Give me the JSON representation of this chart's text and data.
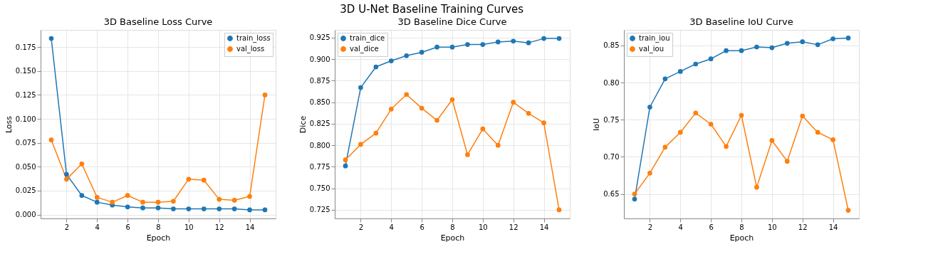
{
  "chart_data": [
    {
      "type": "line",
      "title": "3D Baseline Loss Curve",
      "xlabel": "Epoch",
      "ylabel": "Loss",
      "annotations": [
        "3D U-Net Baseline Training Curves"
      ],
      "x": [
        1,
        2,
        3,
        4,
        5,
        6,
        7,
        8,
        9,
        10,
        11,
        12,
        13,
        14,
        15
      ],
      "series": [
        {
          "name": "train_loss",
          "color": "#1f77b4",
          "values": [
            0.184,
            0.042,
            0.02,
            0.013,
            0.01,
            0.008,
            0.007,
            0.007,
            0.006,
            0.006,
            0.006,
            0.006,
            0.006,
            0.005,
            0.005
          ]
        },
        {
          "name": "val_loss",
          "color": "#ff7f0e",
          "values": [
            0.078,
            0.037,
            0.053,
            0.018,
            0.013,
            0.02,
            0.013,
            0.013,
            0.014,
            0.037,
            0.036,
            0.016,
            0.015,
            0.019,
            0.125
          ]
        }
      ],
      "xlim": [
        0.3,
        15.7
      ],
      "xticks": [
        2,
        4,
        6,
        8,
        10,
        12,
        14
      ],
      "ylim": [
        -0.004,
        0.193
      ],
      "yticks": [
        {
          "value": 0,
          "label": "0.000"
        },
        {
          "value": 0.025,
          "label": "0.025"
        },
        {
          "value": 0.05,
          "label": "0.050"
        },
        {
          "value": 0.075,
          "label": "0.075"
        },
        {
          "value": 0.1,
          "label": "0.100"
        },
        {
          "value": 0.125,
          "label": "0.125"
        },
        {
          "value": 0.15,
          "label": "0.150"
        },
        {
          "value": 0.175,
          "label": "0.175"
        }
      ],
      "grid": true,
      "legend": "top right",
      "marker": "circle",
      "line_style": "solid"
    },
    {
      "type": "line",
      "title": "3D Baseline Dice Curve",
      "xlabel": "Epoch",
      "ylabel": "Dice",
      "x": [
        1,
        2,
        3,
        4,
        5,
        6,
        7,
        8,
        9,
        10,
        11,
        12,
        13,
        14,
        15
      ],
      "series": [
        {
          "name": "train_dice",
          "color": "#1f77b4",
          "values": [
            0.776,
            0.867,
            0.891,
            0.898,
            0.904,
            0.908,
            0.914,
            0.914,
            0.917,
            0.917,
            0.92,
            0.921,
            0.919,
            0.924,
            0.924
          ]
        },
        {
          "name": "val_dice",
          "color": "#ff7f0e",
          "values": [
            0.783,
            0.801,
            0.814,
            0.842,
            0.859,
            0.843,
            0.829,
            0.853,
            0.789,
            0.819,
            0.8,
            0.85,
            0.837,
            0.826,
            0.725
          ]
        }
      ],
      "xlim": [
        0.3,
        15.7
      ],
      "xticks": [
        2,
        4,
        6,
        8,
        10,
        12,
        14
      ],
      "ylim": [
        0.715,
        0.934
      ],
      "yticks": [
        {
          "value": 0.725,
          "label": "0.725"
        },
        {
          "value": 0.75,
          "label": "0.750"
        },
        {
          "value": 0.775,
          "label": "0.775"
        },
        {
          "value": 0.8,
          "label": "0.800"
        },
        {
          "value": 0.825,
          "label": "0.825"
        },
        {
          "value": 0.85,
          "label": "0.850"
        },
        {
          "value": 0.875,
          "label": "0.875"
        },
        {
          "value": 0.9,
          "label": "0.900"
        },
        {
          "value": 0.925,
          "label": "0.925"
        }
      ],
      "grid": true,
      "legend": "top left",
      "marker": "circle",
      "line_style": "solid"
    },
    {
      "type": "line",
      "title": "3D Baseline IoU Curve",
      "xlabel": "Epoch",
      "ylabel": "IoU",
      "x": [
        1,
        2,
        3,
        4,
        5,
        6,
        7,
        8,
        9,
        10,
        11,
        12,
        13,
        14,
        15
      ],
      "series": [
        {
          "name": "train_iou",
          "color": "#1f77b4",
          "values": [
            0.643,
            0.767,
            0.805,
            0.815,
            0.825,
            0.832,
            0.843,
            0.843,
            0.848,
            0.847,
            0.853,
            0.855,
            0.851,
            0.859,
            0.86
          ]
        },
        {
          "name": "val_iou",
          "color": "#ff7f0e",
          "values": [
            0.65,
            0.678,
            0.713,
            0.733,
            0.759,
            0.744,
            0.714,
            0.756,
            0.659,
            0.722,
            0.694,
            0.755,
            0.733,
            0.723,
            0.628
          ]
        }
      ],
      "xlim": [
        0.3,
        15.7
      ],
      "xticks": [
        2,
        4,
        6,
        8,
        10,
        12,
        14
      ],
      "ylim": [
        0.617,
        0.871
      ],
      "yticks": [
        {
          "value": 0.65,
          "label": "0.65"
        },
        {
          "value": 0.7,
          "label": "0.70"
        },
        {
          "value": 0.75,
          "label": "0.75"
        },
        {
          "value": 0.8,
          "label": "0.80"
        },
        {
          "value": 0.85,
          "label": "0.85"
        }
      ],
      "grid": true,
      "legend": "top left",
      "marker": "circle",
      "line_style": "solid"
    }
  ]
}
